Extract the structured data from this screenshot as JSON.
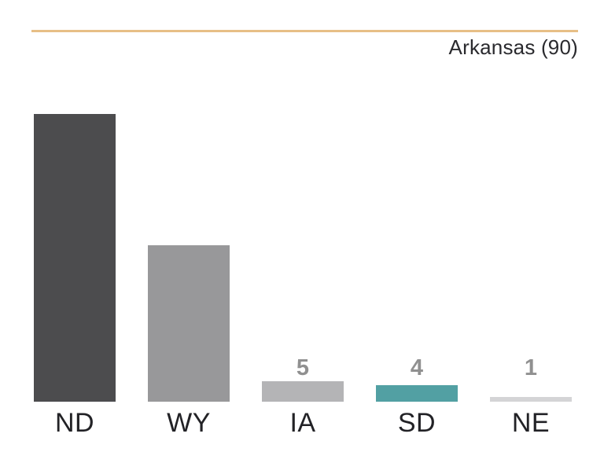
{
  "header": {
    "title": "Arkansas (90)"
  },
  "colors": {
    "background": "#ffffff",
    "accent_line": "#e7bf86",
    "title_text": "#2a2a2e",
    "category_label": "#222226",
    "value_label_inside": "#ffffff",
    "value_label_outside": "#909090"
  },
  "chart_data": {
    "type": "bar",
    "title": "Arkansas (90)",
    "categories": [
      "ND",
      "WY",
      "IA",
      "SD",
      "NE"
    ],
    "values": [
      70,
      38,
      5,
      4,
      1
    ],
    "bar_colors": [
      "#4c4c4e",
      "#98989a",
      "#b4b4b6",
      "#52a0a3",
      "#d4d4d6"
    ],
    "xlabel": "",
    "ylabel": "",
    "ylim": [
      0,
      70
    ],
    "grid": false,
    "legend": "none",
    "axes_visible": false,
    "value_label_style": "white inside tall bars, gray above short bars"
  }
}
